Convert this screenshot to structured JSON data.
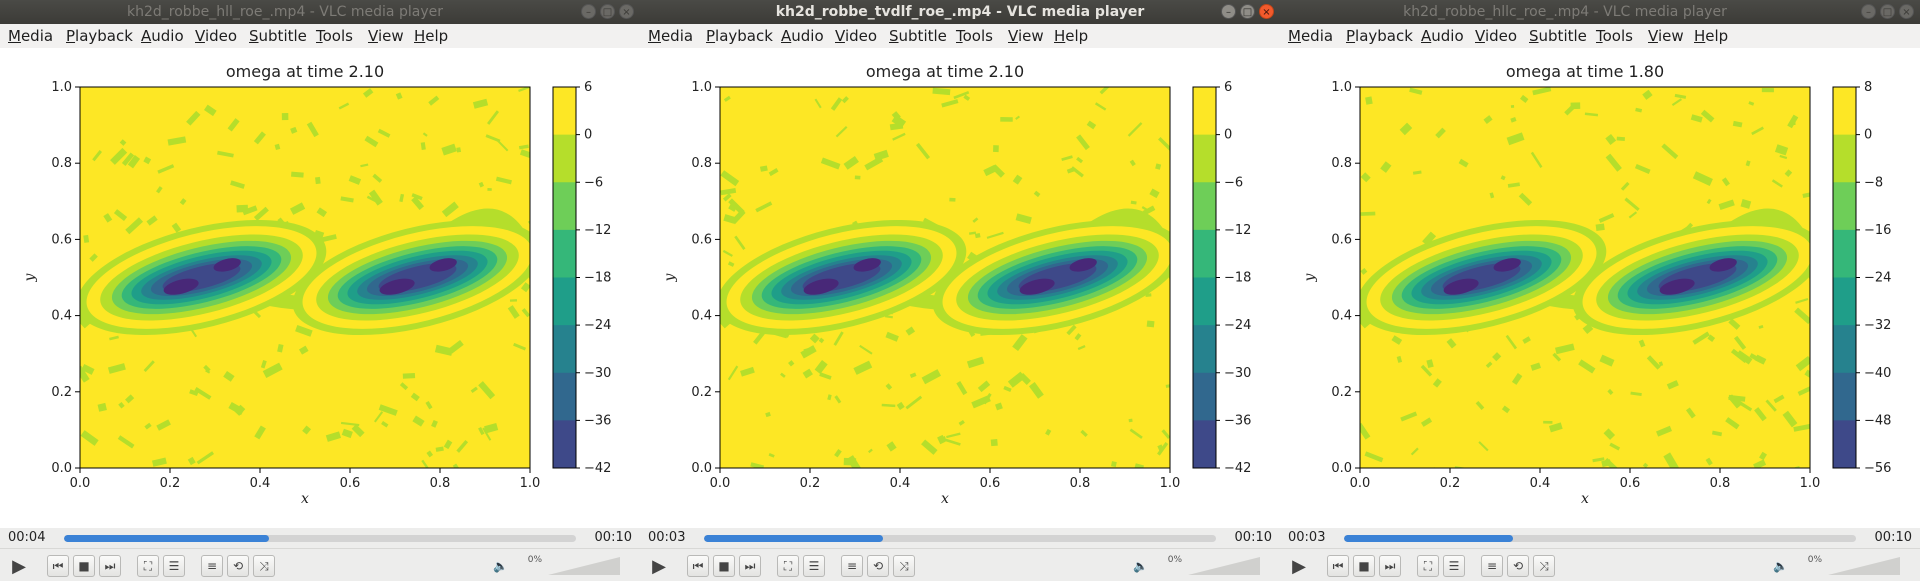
{
  "menu": [
    "Media",
    "Playback",
    "Audio",
    "Video",
    "Subtitle",
    "Tools",
    "View",
    "Help"
  ],
  "window_buttons": {
    "minimize": "–",
    "maximize": "□",
    "close": "×"
  },
  "colors": {
    "viridis": [
      "#fde725",
      "#b5de2b",
      "#6ece58",
      "#35b779",
      "#1f9e89",
      "#26828e",
      "#31688e",
      "#3e4989",
      "#482878",
      "#440154"
    ],
    "seek_fill": "#3b82d6",
    "titlebar": "#3c3b37"
  },
  "icons": [
    "play-icon",
    "previous-icon",
    "stop-icon",
    "next-icon",
    "fullscreen-icon",
    "extended-settings-icon",
    "playlist-icon",
    "loop-icon",
    "shuffle-icon",
    "speaker-icon"
  ],
  "windows": [
    {
      "title": "kh2d_robbe_hll_roe_.mp4 - VLC media player",
      "active": false,
      "elapsed": "00:04",
      "total": "00:10",
      "progress": 0.4,
      "volume": "0%",
      "chart": {
        "title": "omega at time 2.10",
        "xlabel": "x",
        "ylabel": "y",
        "x_ticks": [
          "0.0",
          "0.2",
          "0.4",
          "0.6",
          "0.8",
          "1.0"
        ],
        "y_ticks": [
          "0.0",
          "0.2",
          "0.4",
          "0.6",
          "0.8",
          "1.0"
        ],
        "colorbar_ticks": [
          "6",
          "0",
          "−6",
          "−12",
          "−18",
          "−24",
          "−30",
          "−36",
          "−42"
        ]
      }
    },
    {
      "title": "kh2d_robbe_tvdlf_roe_.mp4 - VLC media player",
      "active": true,
      "elapsed": "00:03",
      "total": "00:10",
      "progress": 0.35,
      "volume": "0%",
      "chart": {
        "title": "omega at time 2.10",
        "xlabel": "x",
        "ylabel": "y",
        "x_ticks": [
          "0.0",
          "0.2",
          "0.4",
          "0.6",
          "0.8",
          "1.0"
        ],
        "y_ticks": [
          "0.0",
          "0.2",
          "0.4",
          "0.6",
          "0.8",
          "1.0"
        ],
        "colorbar_ticks": [
          "6",
          "0",
          "−6",
          "−12",
          "−18",
          "−24",
          "−30",
          "−36",
          "−42"
        ]
      }
    },
    {
      "title": "kh2d_robbe_hllc_roe_.mp4 - VLC media player",
      "active": false,
      "elapsed": "00:03",
      "total": "00:10",
      "progress": 0.33,
      "volume": "0%",
      "chart": {
        "title": "omega at time 1.80",
        "xlabel": "x",
        "ylabel": "y",
        "x_ticks": [
          "0.0",
          "0.2",
          "0.4",
          "0.6",
          "0.8",
          "1.0"
        ],
        "y_ticks": [
          "0.0",
          "0.2",
          "0.4",
          "0.6",
          "0.8",
          "1.0"
        ],
        "colorbar_ticks": [
          "8",
          "0",
          "−8",
          "−16",
          "−24",
          "−32",
          "−40",
          "−48",
          "−56"
        ]
      }
    }
  ]
}
